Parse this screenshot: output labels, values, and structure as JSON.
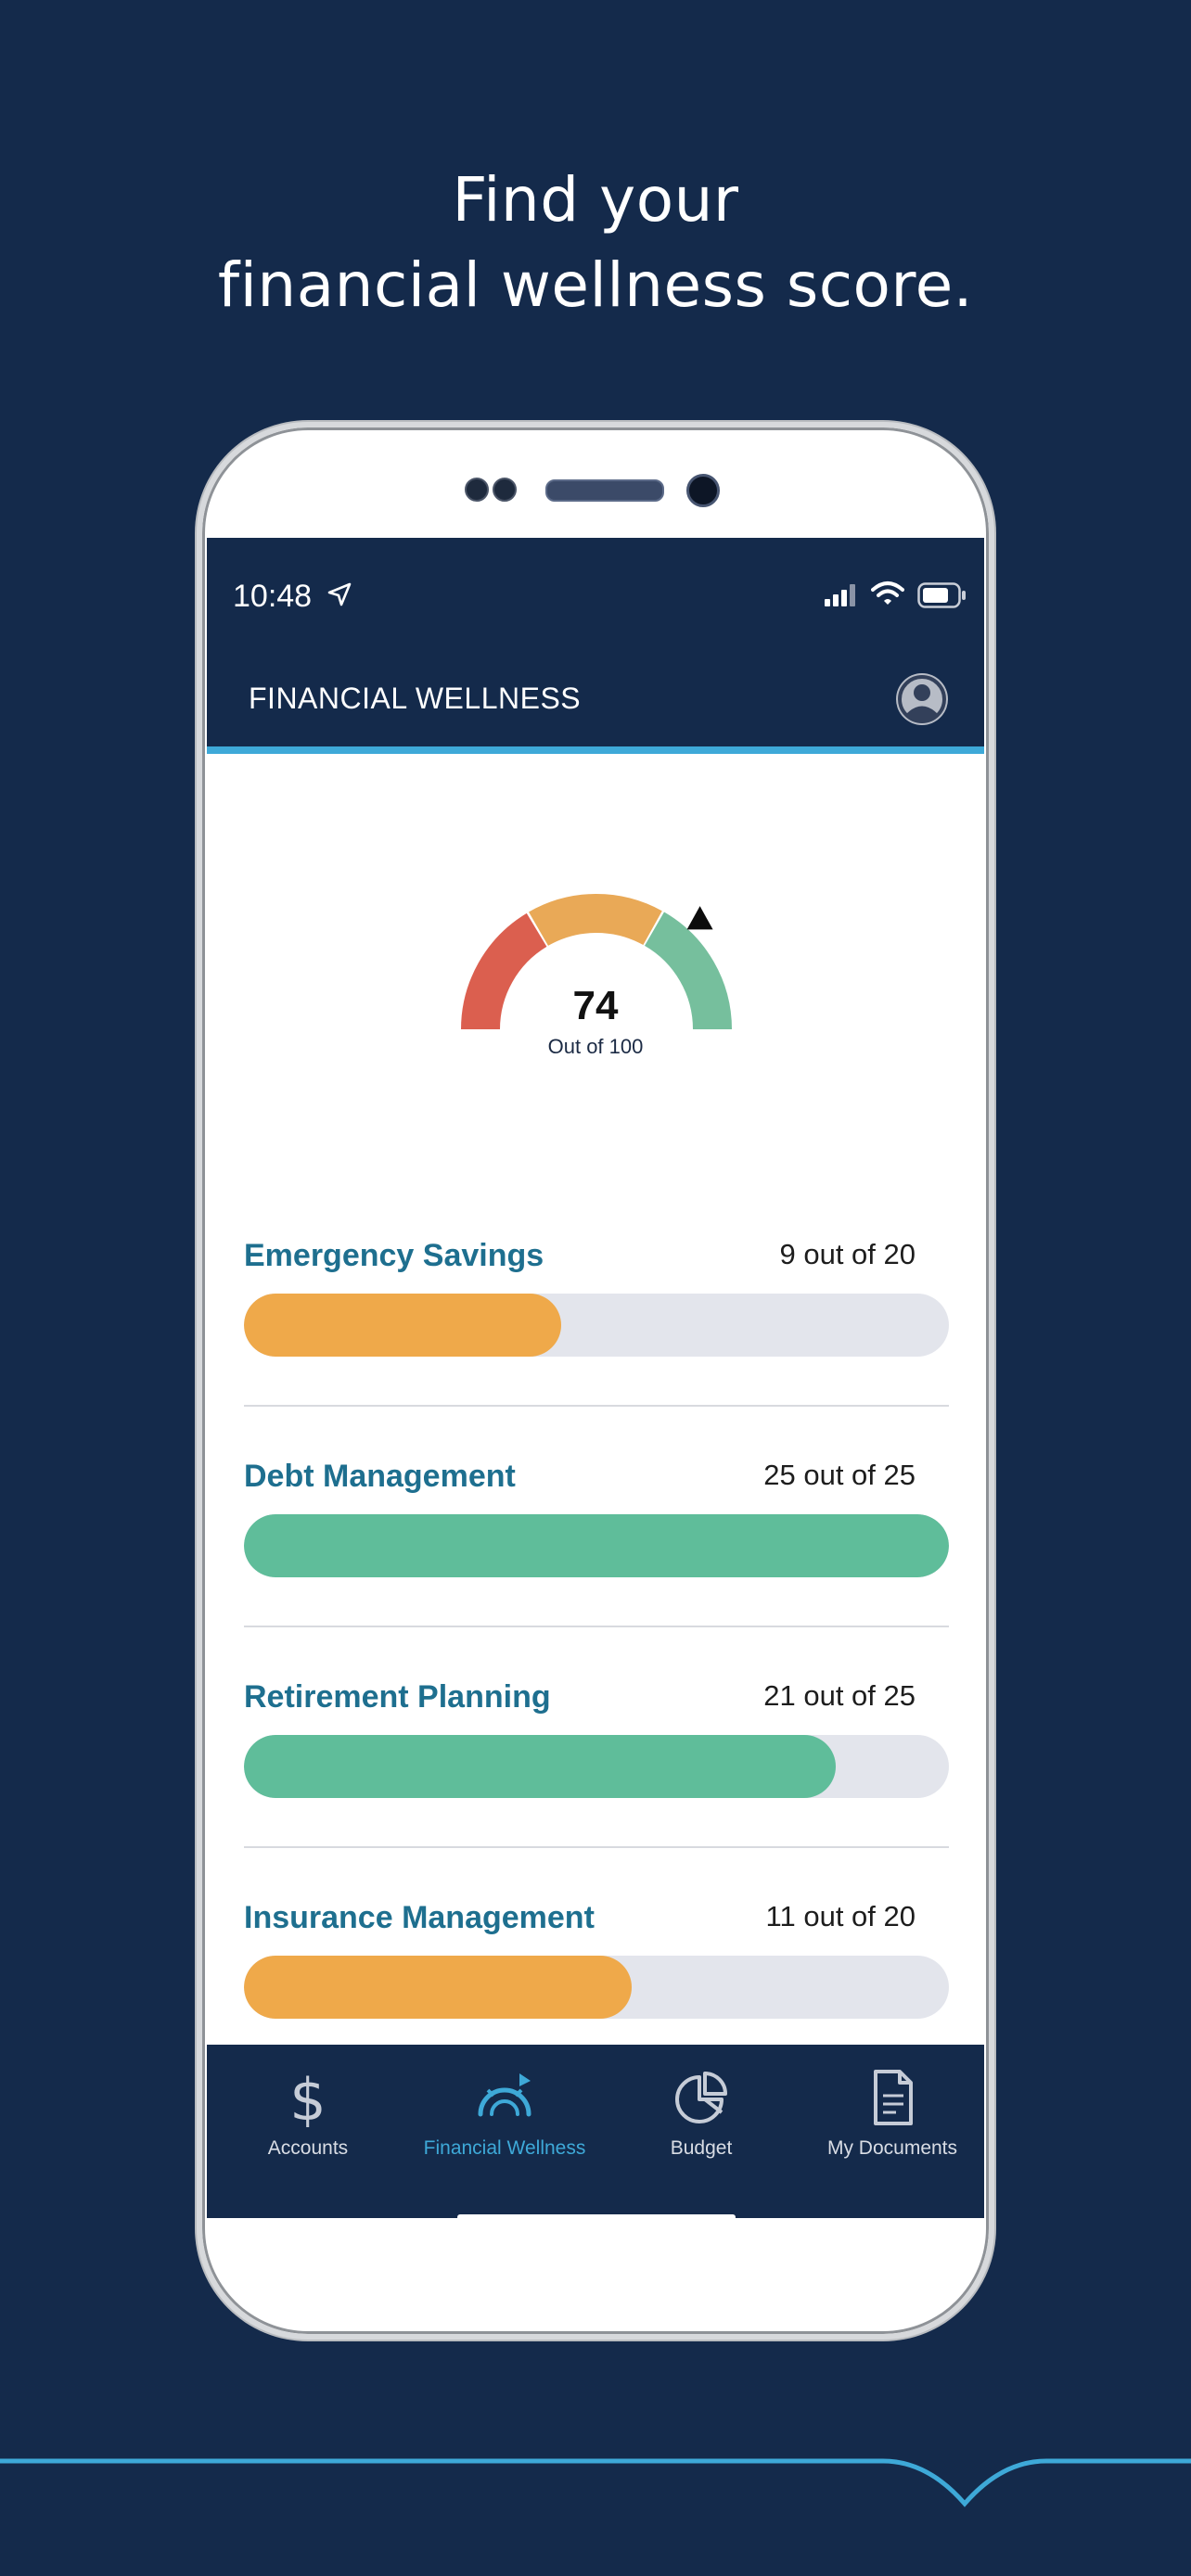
{
  "headline": {
    "line1": "Find your",
    "line2": "financial wellness score."
  },
  "status_bar": {
    "time": "10:48",
    "icons": [
      "location-arrow-icon",
      "signal-icon",
      "wifi-icon",
      "battery-icon"
    ]
  },
  "header": {
    "title": "FINANCIAL WELLNESS",
    "profile_icon": "avatar-icon"
  },
  "score": {
    "value": "74",
    "caption": "Out of 100",
    "fraction": 0.74
  },
  "metrics": [
    {
      "label": "Emergency Savings",
      "score_text": "9 out of 20",
      "value": 9,
      "max": 20,
      "color": "#efa94a"
    },
    {
      "label": "Debt Management",
      "score_text": "25 out of 25",
      "value": 25,
      "max": 25,
      "color": "#5fbd9a"
    },
    {
      "label": "Retirement Planning",
      "score_text": "21 out of 25",
      "value": 21,
      "max": 25,
      "color": "#5fbd9a"
    },
    {
      "label": "Insurance Management",
      "score_text": "11 out of 20",
      "value": 11,
      "max": 20,
      "color": "#efa94a"
    }
  ],
  "tabs": [
    {
      "label": "Accounts",
      "icon": "dollar-icon",
      "active": false
    },
    {
      "label": "Financial Wellness",
      "icon": "gauge-icon",
      "active": true
    },
    {
      "label": "Budget",
      "icon": "pie-chart-icon",
      "active": false
    },
    {
      "label": "My Documents",
      "icon": "document-icon",
      "active": false
    }
  ],
  "colors": {
    "background": "#142a4b",
    "accent": "#3ea9d8",
    "label": "#1e6f8f",
    "gauge_red": "#db5f4f",
    "gauge_orange": "#e9a957",
    "gauge_green": "#76bf9d"
  }
}
